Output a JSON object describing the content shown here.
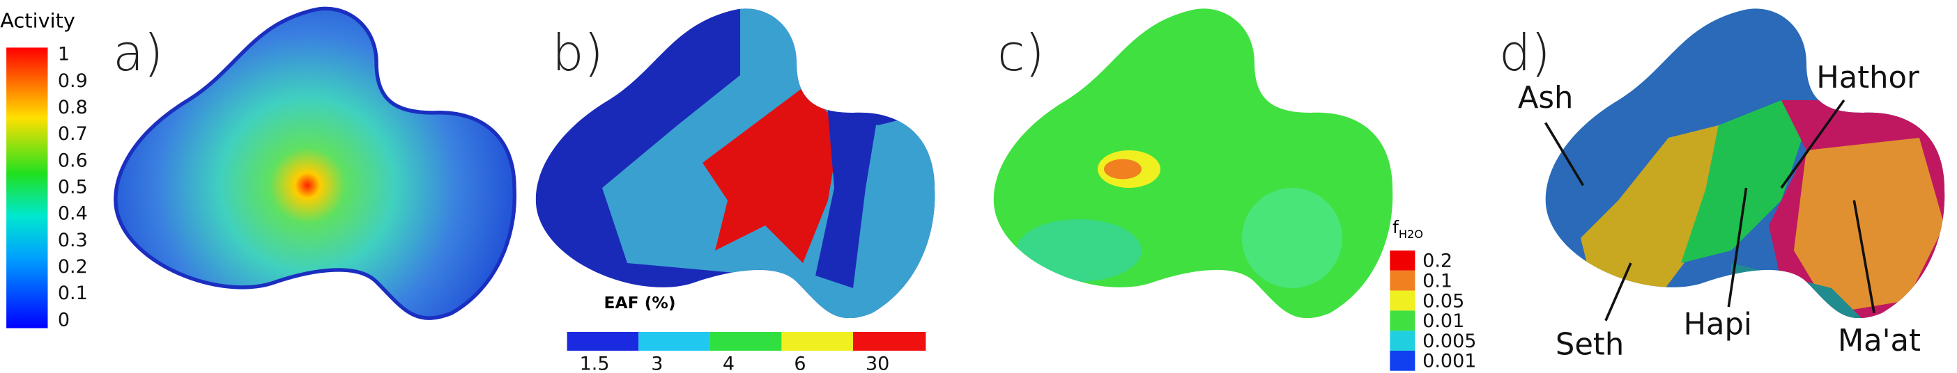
{
  "panels": [
    {
      "label": "a)",
      "colorbar": {
        "title": "Activity",
        "ticks": [
          "1",
          "0.9",
          "0.8",
          "0.7",
          "0.6",
          "0.5",
          "0.4",
          "0.3",
          "0.2",
          "0.1",
          "0"
        ]
      }
    },
    {
      "label": "b)",
      "colorbar": {
        "title": "EAF (%)",
        "ticks": [
          "1.5",
          "3",
          "4",
          "6",
          "30"
        ]
      }
    },
    {
      "label": "c)",
      "colorbar": {
        "title": {
          "main": "f",
          "sub": "H2O"
        },
        "ticks": [
          "0.2",
          "0.1",
          "0.05",
          "0.01",
          "0.005",
          "0.001"
        ]
      }
    },
    {
      "label": "d)",
      "regions": [
        "Ash",
        "Hathor",
        "Seth",
        "Hapi",
        "Ma'at"
      ]
    }
  ]
}
